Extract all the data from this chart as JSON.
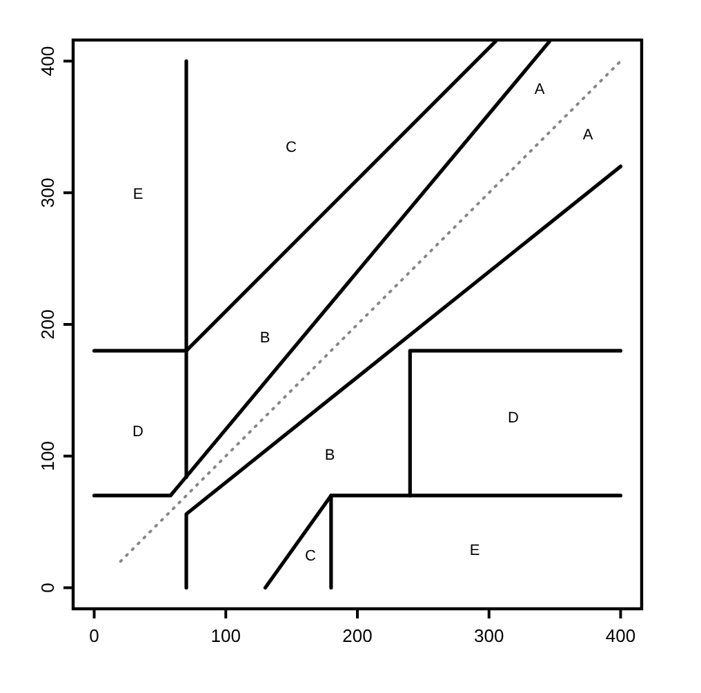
{
  "chart_data": {
    "type": "line",
    "xlim": [
      -16,
      416
    ],
    "ylim": [
      -16,
      416
    ],
    "xticks": [
      0,
      100,
      200,
      300,
      400
    ],
    "yticks": [
      0,
      100,
      200,
      300,
      400
    ],
    "grid": false,
    "marker": "none",
    "series": [
      {
        "color": "#000000",
        "x": [
          0,
          58,
          346
        ],
        "values": [
          70,
          70,
          415
        ]
      },
      {
        "color": "#000000",
        "x": [
          70,
          70,
          400
        ],
        "values": [
          0,
          56,
          320
        ]
      },
      {
        "color": "#000000",
        "x": [
          70,
          70
        ],
        "values": [
          84,
          400
        ]
      },
      {
        "color": "#000000",
        "x": [
          0,
          70
        ],
        "values": [
          180,
          180
        ]
      },
      {
        "color": "#000000",
        "x": [
          70,
          305
        ],
        "values": [
          180,
          415
        ]
      },
      {
        "color": "#000000",
        "x": [
          130,
          180,
          400
        ],
        "values": [
          0,
          70,
          70
        ]
      },
      {
        "color": "#000000",
        "x": [
          180,
          180
        ],
        "values": [
          0,
          70
        ]
      },
      {
        "color": "#000000",
        "x": [
          240,
          240,
          400
        ],
        "values": [
          70,
          180,
          180
        ]
      },
      {
        "color": "#888888",
        "x": [
          20,
          400
        ],
        "values": [
          20,
          400
        ],
        "line_style": "dotted"
      }
    ],
    "annotations": [
      "A",
      "A",
      "C",
      "E",
      "B",
      "D",
      "B",
      "D",
      "C",
      "E"
    ]
  }
}
